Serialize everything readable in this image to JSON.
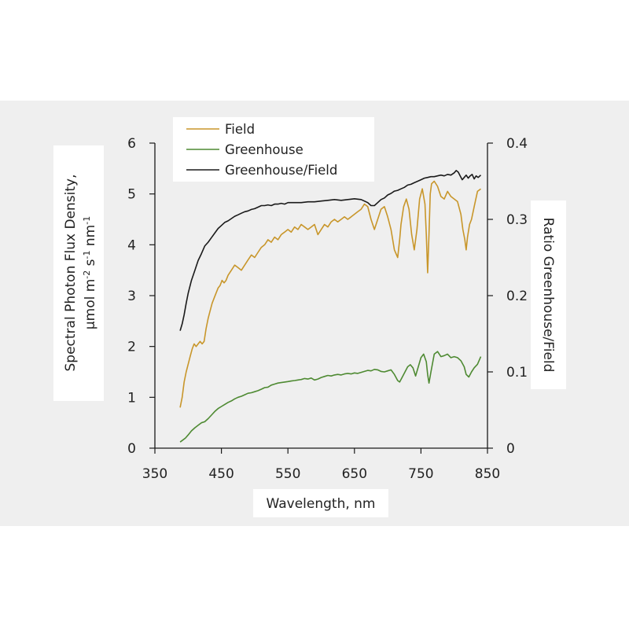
{
  "chart_data": {
    "type": "line",
    "xlabel": "Wavelength, nm",
    "ylabel_line1": "Spectral Photon Flux Density,",
    "ylabel_line2_main": "μmol m",
    "ylabel_line2_sup1": "-2",
    "ylabel_line2_mid": " s",
    "ylabel_line2_sup2": "-1",
    "ylabel_line2_end": " nm",
    "ylabel_line2_sup3": "-1",
    "y2label": "Ratio Greenhouse/Field",
    "xlim": [
      350,
      850
    ],
    "ylim": [
      0,
      6
    ],
    "y2lim": [
      0,
      0.4
    ],
    "xticks": [
      "350",
      "450",
      "550",
      "650",
      "750",
      "850"
    ],
    "yticks": [
      "0",
      "1",
      "2",
      "3",
      "4",
      "5",
      "6"
    ],
    "y2ticks": [
      "0",
      "0.1",
      "0.2",
      "0.3",
      "0.4"
    ],
    "legend_position": "top-left",
    "colors": {
      "field": "#c8962a",
      "greenhouse": "#4e8a32",
      "ratio": "#1a1a1a"
    },
    "series": [
      {
        "name": "Field",
        "axis": "left",
        "x": [
          388,
          391,
          394,
          397,
          400,
          403,
          406,
          409,
          412,
          415,
          418,
          421,
          424,
          427,
          430,
          433,
          436,
          439,
          442,
          445,
          448,
          451,
          454,
          457,
          460,
          465,
          470,
          475,
          480,
          485,
          490,
          495,
          500,
          505,
          510,
          515,
          520,
          525,
          530,
          535,
          540,
          545,
          550,
          555,
          560,
          565,
          570,
          575,
          580,
          585,
          590,
          595,
          600,
          605,
          610,
          615,
          620,
          625,
          630,
          635,
          640,
          645,
          650,
          655,
          660,
          665,
          670,
          675,
          680,
          685,
          690,
          695,
          700,
          705,
          710,
          715,
          718,
          720,
          724,
          728,
          732,
          736,
          740,
          744,
          748,
          752,
          756,
          758,
          760,
          762,
          764,
          766,
          770,
          775,
          780,
          785,
          790,
          795,
          800,
          805,
          810,
          813,
          816,
          818,
          820,
          823,
          826,
          830,
          835,
          840
        ],
        "y": [
          0.8,
          1.0,
          1.3,
          1.5,
          1.65,
          1.8,
          1.95,
          2.05,
          2.0,
          2.05,
          2.1,
          2.05,
          2.1,
          2.35,
          2.55,
          2.7,
          2.85,
          2.95,
          3.05,
          3.15,
          3.2,
          3.3,
          3.25,
          3.3,
          3.4,
          3.5,
          3.6,
          3.55,
          3.5,
          3.6,
          3.7,
          3.8,
          3.75,
          3.85,
          3.95,
          4.0,
          4.1,
          4.05,
          4.15,
          4.1,
          4.2,
          4.25,
          4.3,
          4.25,
          4.35,
          4.3,
          4.4,
          4.35,
          4.3,
          4.35,
          4.4,
          4.2,
          4.3,
          4.4,
          4.35,
          4.45,
          4.5,
          4.45,
          4.5,
          4.55,
          4.5,
          4.55,
          4.6,
          4.65,
          4.7,
          4.8,
          4.75,
          4.5,
          4.3,
          4.5,
          4.7,
          4.75,
          4.55,
          4.3,
          3.9,
          3.75,
          4.1,
          4.4,
          4.75,
          4.9,
          4.7,
          4.2,
          3.9,
          4.3,
          4.9,
          5.1,
          4.8,
          4.2,
          3.45,
          4.2,
          5.0,
          5.2,
          5.25,
          5.15,
          4.95,
          4.9,
          5.05,
          4.95,
          4.9,
          4.85,
          4.6,
          4.3,
          4.1,
          3.9,
          4.15,
          4.4,
          4.5,
          4.75,
          5.05,
          5.1
        ]
      },
      {
        "name": "Greenhouse",
        "axis": "left",
        "x": [
          388,
          392,
          396,
          400,
          405,
          410,
          415,
          420,
          425,
          430,
          435,
          440,
          445,
          450,
          455,
          460,
          465,
          470,
          475,
          480,
          485,
          490,
          495,
          500,
          505,
          510,
          515,
          520,
          525,
          530,
          535,
          540,
          545,
          550,
          555,
          560,
          565,
          570,
          575,
          580,
          585,
          590,
          595,
          600,
          605,
          610,
          615,
          620,
          625,
          630,
          635,
          640,
          645,
          650,
          655,
          660,
          665,
          670,
          675,
          680,
          685,
          690,
          695,
          700,
          705,
          710,
          715,
          718,
          722,
          726,
          730,
          734,
          738,
          742,
          746,
          750,
          754,
          758,
          760,
          762,
          765,
          770,
          775,
          780,
          785,
          790,
          795,
          800,
          805,
          810,
          815,
          818,
          822,
          826,
          830,
          835,
          840
        ],
        "y": [
          0.12,
          0.16,
          0.2,
          0.26,
          0.34,
          0.4,
          0.45,
          0.5,
          0.52,
          0.58,
          0.65,
          0.72,
          0.78,
          0.82,
          0.86,
          0.9,
          0.93,
          0.97,
          1.0,
          1.02,
          1.05,
          1.08,
          1.09,
          1.11,
          1.13,
          1.16,
          1.19,
          1.2,
          1.24,
          1.26,
          1.28,
          1.29,
          1.3,
          1.31,
          1.32,
          1.33,
          1.34,
          1.35,
          1.37,
          1.36,
          1.38,
          1.34,
          1.36,
          1.39,
          1.41,
          1.43,
          1.42,
          1.44,
          1.45,
          1.44,
          1.46,
          1.47,
          1.46,
          1.48,
          1.47,
          1.49,
          1.51,
          1.53,
          1.52,
          1.55,
          1.54,
          1.51,
          1.5,
          1.52,
          1.54,
          1.45,
          1.33,
          1.3,
          1.4,
          1.5,
          1.6,
          1.64,
          1.58,
          1.42,
          1.6,
          1.78,
          1.85,
          1.7,
          1.45,
          1.28,
          1.5,
          1.85,
          1.9,
          1.8,
          1.82,
          1.85,
          1.78,
          1.8,
          1.78,
          1.72,
          1.6,
          1.45,
          1.4,
          1.5,
          1.58,
          1.65,
          1.8
        ]
      },
      {
        "name": "Greenhouse/Field",
        "axis": "right",
        "x": [
          388,
          391,
          394,
          397,
          400,
          405,
          410,
          415,
          420,
          425,
          430,
          435,
          440,
          445,
          450,
          455,
          460,
          465,
          470,
          475,
          480,
          485,
          490,
          495,
          500,
          505,
          510,
          515,
          520,
          525,
          530,
          535,
          540,
          545,
          550,
          560,
          570,
          580,
          590,
          600,
          610,
          620,
          630,
          640,
          650,
          660,
          670,
          675,
          680,
          685,
          690,
          695,
          700,
          705,
          710,
          715,
          720,
          725,
          730,
          735,
          740,
          745,
          750,
          755,
          760,
          765,
          770,
          775,
          780,
          785,
          790,
          795,
          800,
          803,
          806,
          809,
          812,
          815,
          818,
          821,
          824,
          827,
          830,
          833,
          836,
          840
        ],
        "y": [
          0.154,
          0.163,
          0.175,
          0.19,
          0.203,
          0.22,
          0.233,
          0.246,
          0.255,
          0.265,
          0.27,
          0.276,
          0.282,
          0.288,
          0.292,
          0.296,
          0.298,
          0.301,
          0.304,
          0.306,
          0.308,
          0.31,
          0.311,
          0.313,
          0.314,
          0.316,
          0.318,
          0.318,
          0.319,
          0.318,
          0.32,
          0.32,
          0.321,
          0.32,
          0.322,
          0.322,
          0.322,
          0.323,
          0.323,
          0.324,
          0.325,
          0.326,
          0.325,
          0.326,
          0.327,
          0.326,
          0.322,
          0.318,
          0.318,
          0.322,
          0.326,
          0.328,
          0.332,
          0.334,
          0.337,
          0.338,
          0.34,
          0.342,
          0.345,
          0.346,
          0.348,
          0.35,
          0.352,
          0.354,
          0.355,
          0.356,
          0.356,
          0.357,
          0.358,
          0.357,
          0.359,
          0.358,
          0.361,
          0.364,
          0.362,
          0.357,
          0.352,
          0.355,
          0.358,
          0.354,
          0.357,
          0.359,
          0.353,
          0.357,
          0.355,
          0.358
        ]
      }
    ]
  }
}
